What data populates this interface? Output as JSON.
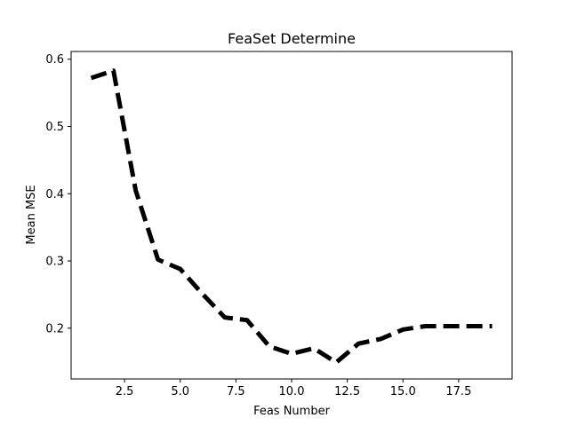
{
  "chart_data": {
    "type": "line",
    "title": "FeaSet Determine",
    "xlabel": "Feas Number",
    "ylabel": "Mean MSE",
    "xlim": [
      0.1,
      19.9
    ],
    "ylim": [
      0.1245,
      0.6115
    ],
    "x_ticks": [
      2.5,
      5.0,
      7.5,
      10.0,
      12.5,
      15.0,
      17.5
    ],
    "x_tick_labels": [
      "2.5",
      "5.0",
      "7.5",
      "10.0",
      "12.5",
      "15.0",
      "17.5"
    ],
    "y_ticks": [
      0.2,
      0.3,
      0.4,
      0.5,
      0.6
    ],
    "y_tick_labels": [
      "0.2",
      "0.3",
      "0.4",
      "0.5",
      "0.6"
    ],
    "grid": false,
    "legend": "none",
    "series": [
      {
        "line_style": "dashed",
        "color": "#000000",
        "x": [
          1,
          2,
          3,
          4,
          5,
          6,
          7,
          8,
          9,
          10,
          11,
          12,
          13,
          14,
          15,
          16,
          17,
          18,
          19
        ],
        "y": [
          0.572,
          0.583,
          0.405,
          0.302,
          0.288,
          0.251,
          0.216,
          0.212,
          0.173,
          0.162,
          0.17,
          0.149,
          0.177,
          0.184,
          0.198,
          0.203,
          0.203,
          0.203,
          0.203
        ]
      }
    ]
  }
}
